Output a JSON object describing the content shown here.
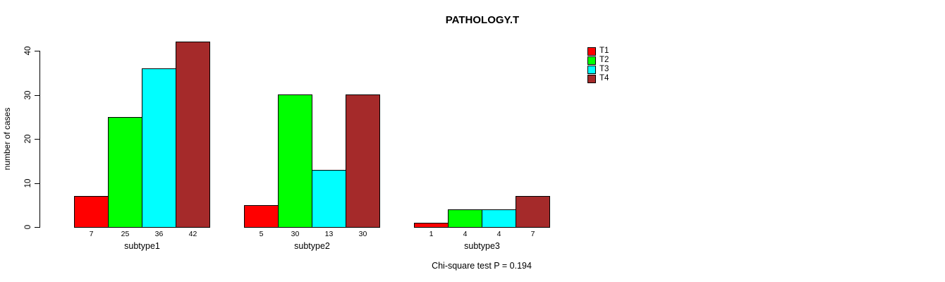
{
  "chart_data": {
    "type": "bar",
    "title": "PATHOLOGY.T",
    "xlabel": "",
    "ylabel": "number of cases",
    "ylim": [
      0,
      40
    ],
    "y_ticks": [
      0,
      10,
      20,
      30,
      40
    ],
    "grid": false,
    "legend_position": "top-right",
    "categories": [
      "subtype1",
      "subtype2",
      "subtype3"
    ],
    "series": [
      {
        "name": "T1",
        "color": "#ff0000",
        "values": [
          7,
          5,
          1
        ]
      },
      {
        "name": "T2",
        "color": "#00ff00",
        "values": [
          25,
          30,
          4
        ]
      },
      {
        "name": "T3",
        "color": "#00ffff",
        "values": [
          36,
          13,
          4
        ]
      },
      {
        "name": "T4",
        "color": "#a52a2a",
        "values": [
          42,
          30,
          7
        ]
      }
    ],
    "bar_value_labels": {
      "subtype1": [
        7,
        25,
        36,
        42
      ],
      "subtype2": [
        5,
        30,
        13,
        30
      ],
      "subtype3": [
        1,
        4,
        4,
        7
      ]
    },
    "annotation": "Chi-square test P = 0.194"
  }
}
